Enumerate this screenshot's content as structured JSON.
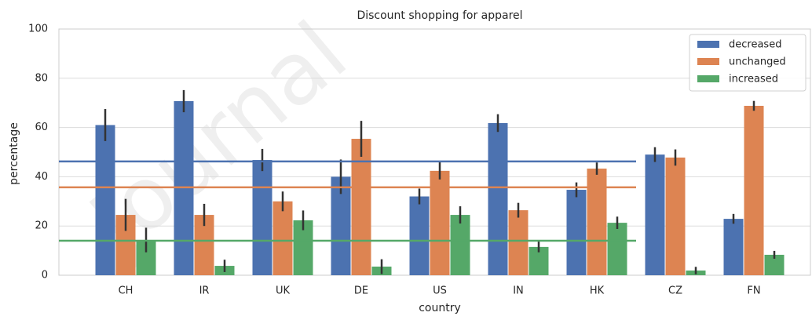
{
  "chart_data": {
    "type": "bar",
    "title": "Discount shopping for apparel",
    "x_label": "country",
    "y_label": "percentage",
    "watermark": "Journal",
    "categories": [
      "CH",
      "IR",
      "UK",
      "DE",
      "US",
      "IN",
      "HK",
      "CZ",
      "FN"
    ],
    "series": [
      {
        "name": "decreased",
        "color": "#4c72b0",
        "values": [
          61,
          70.7,
          46.8,
          40,
          32,
          61.8,
          34.7,
          49,
          22.9
        ],
        "errors": [
          6.5,
          4.5,
          4.5,
          7,
          3.2,
          3.6,
          3,
          3,
          2
        ]
      },
      {
        "name": "unchanged",
        "color": "#dd8452",
        "values": [
          24.5,
          24.5,
          30,
          55.4,
          42.4,
          26.4,
          43.3,
          47.8,
          68.8
        ],
        "errors": [
          6.5,
          4.5,
          4,
          7.3,
          3.5,
          3,
          2.5,
          3.3,
          2
        ]
      },
      {
        "name": "increased",
        "color": "#55a868",
        "values": [
          14.3,
          3.8,
          22.3,
          3.5,
          24.5,
          11.5,
          21.3,
          1.9,
          8.3
        ],
        "errors": [
          5,
          2.5,
          4,
          3,
          3.5,
          2.2,
          2.5,
          1.5,
          1.6
        ]
      }
    ],
    "reference_lines": [
      {
        "value": 46.2,
        "color": "#4c72b0"
      },
      {
        "value": 35.7,
        "color": "#dd8452"
      },
      {
        "value": 14,
        "color": "#55a868"
      }
    ],
    "ylim": [
      0,
      100
    ],
    "yticks": [
      0,
      20,
      40,
      60,
      80,
      100
    ],
    "grid": true,
    "legend": "upper right",
    "error_color": "#333333"
  }
}
